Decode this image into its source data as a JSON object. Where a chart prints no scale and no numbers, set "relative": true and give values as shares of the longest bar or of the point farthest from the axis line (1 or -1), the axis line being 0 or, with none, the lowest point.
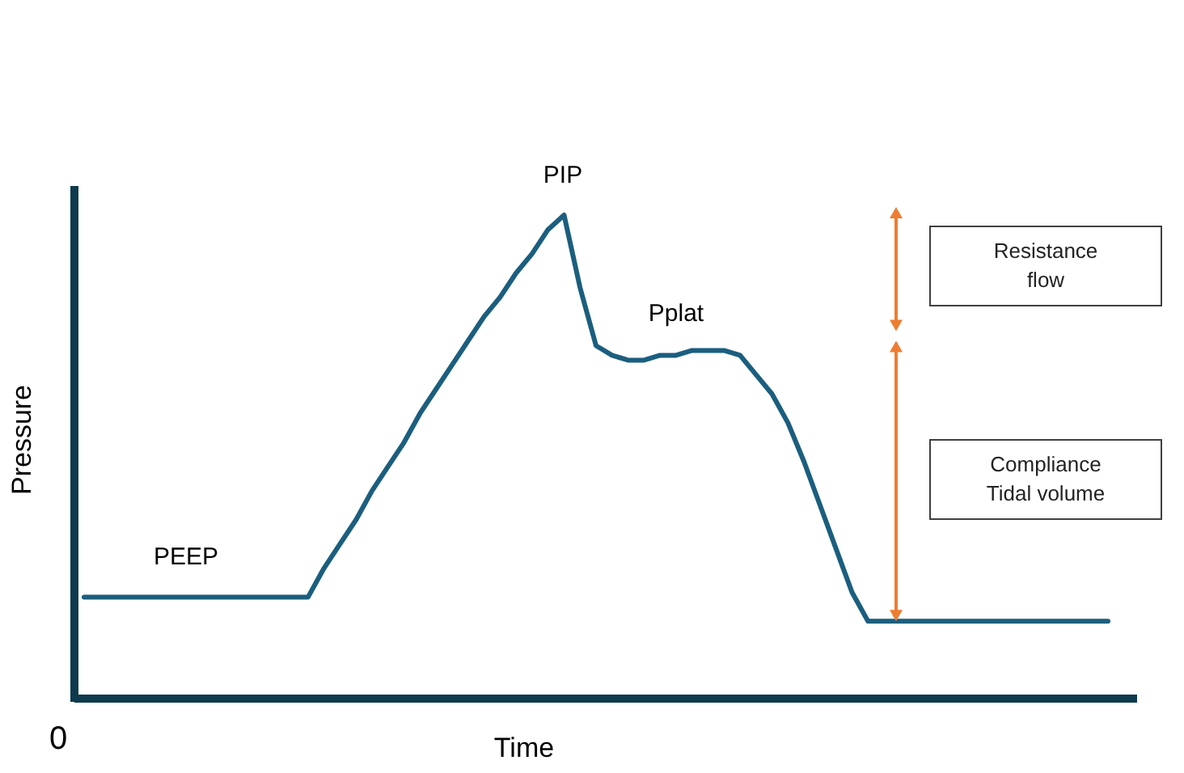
{
  "chart_data": {
    "type": "line",
    "relative": true,
    "xlabel": "Time",
    "ylabel": "Pressure",
    "categories": [
      null,
      null,
      null,
      null,
      null,
      null,
      null,
      null,
      null,
      null,
      null,
      null,
      null,
      null,
      null,
      null,
      null,
      null,
      null,
      null,
      null,
      null,
      null,
      null,
      null,
      null,
      null,
      null,
      null,
      null,
      null,
      null,
      null,
      null,
      null,
      null,
      null,
      null,
      null,
      null,
      null,
      null,
      null,
      null,
      null,
      null,
      null,
      null,
      null,
      null,
      null,
      null,
      null,
      null,
      null,
      null,
      null,
      null,
      null,
      null,
      null,
      null,
      null,
      null,
      null
    ],
    "series": [
      {
        "color": "#1b5e7e",
        "values": [
          0.21,
          0.21,
          0.21,
          0.21,
          0.21,
          0.21,
          0.21,
          0.21,
          0.21,
          0.21,
          0.21,
          0.21,
          0.21,
          0.21,
          0.21,
          0.27,
          0.32,
          0.37,
          0.43,
          0.48,
          0.53,
          0.59,
          0.64,
          0.69,
          0.74,
          0.79,
          0.83,
          0.88,
          0.92,
          0.97,
          1,
          0.85,
          0.73,
          0.71,
          0.7,
          0.7,
          0.71,
          0.71,
          0.72,
          0.72,
          0.72,
          0.71,
          0.67,
          0.63,
          0.57,
          0.49,
          0.4,
          0.31,
          0.22,
          0.16,
          0.16,
          0.16,
          0.16,
          0.16,
          0.16,
          0.16,
          0.16,
          0.16,
          0.16,
          0.16,
          0.16,
          0.16,
          0.16,
          0.16,
          0.16
        ]
      }
    ],
    "marker": "none",
    "line_style": "solid",
    "annotations": [
      {
        "text": "PEEP",
        "y": 0.21
      },
      {
        "text": "PIP",
        "y": 1
      },
      {
        "text": "Pplat",
        "y": 0.72
      },
      "Resistance\nflow",
      "Compliance\nTidal volume",
      "0"
    ]
  }
}
